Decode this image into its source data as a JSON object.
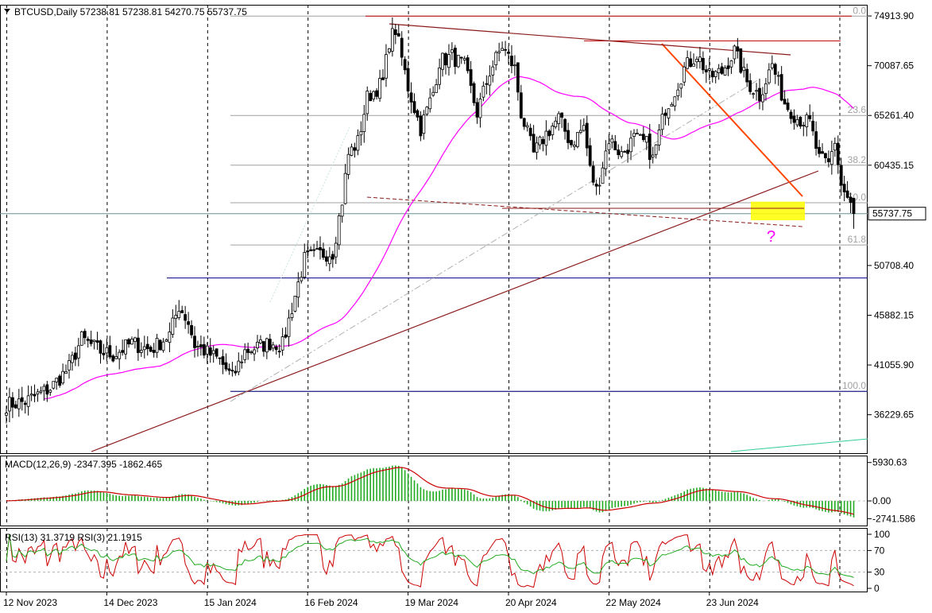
{
  "chart_data": {
    "type": "candlestick",
    "symbol": "BTCUSD",
    "timeframe": "Daily",
    "header": {
      "title": "BTCUSD,Daily  57238.81 57238.81 54270.75 55737.75"
    },
    "price_axis": {
      "ylim": [
        32500,
        76000
      ],
      "ticks": [
        "74913.90",
        "70087.65",
        "65261.40",
        "60435.15",
        "50708.40",
        "45882.15",
        "41055.90",
        "36229.65"
      ],
      "tick_values": [
        74913.9,
        70087.65,
        65261.4,
        60435.15,
        50708.4,
        45882.15,
        41055.9,
        36229.65
      ],
      "current_price_label": "55737.75",
      "current_price": 55737.75
    },
    "time_axis": {
      "labels": [
        "12 Nov 2023",
        "14 Dec 2023",
        "15 Jan 2024",
        "16 Feb 2024",
        "19 Mar 2024",
        "20 Apr 2024",
        "22 May 2024",
        "23 Jun 2024"
      ],
      "label_day_index": [
        0,
        32,
        64,
        96,
        128,
        160,
        192,
        224
      ],
      "total_days": 271
    },
    "fibonacci": {
      "levels": [
        {
          "label": "0.0",
          "price": 74900
        },
        {
          "label": "23.6",
          "price": 65261
        },
        {
          "label": "38.2",
          "price": 60435
        },
        {
          "label": "50.0",
          "price": 56800
        },
        {
          "label": "61.8",
          "price": 52700
        },
        {
          "label": "100.0",
          "price": 38500
        }
      ]
    },
    "horizontal_levels": [
      {
        "price": 49500,
        "color": "#000080"
      },
      {
        "price": 38500,
        "color": "#000080"
      },
      {
        "price": 74900,
        "color": "#c00000"
      },
      {
        "price": 72500,
        "color": "#c00000"
      }
    ],
    "annotation": {
      "text": "?",
      "color": "#ff00ff"
    },
    "highlight_zone": {
      "price_low": 55100,
      "price_high": 56900,
      "color": "#ffff00"
    },
    "ohlc_anchors": [
      {
        "d": 0,
        "c": 37200
      },
      {
        "d": 6,
        "c": 37500
      },
      {
        "d": 14,
        "c": 38800
      },
      {
        "d": 20,
        "c": 40800
      },
      {
        "d": 24,
        "c": 43600
      },
      {
        "d": 30,
        "c": 42400
      },
      {
        "d": 34,
        "c": 42000
      },
      {
        "d": 40,
        "c": 43200
      },
      {
        "d": 46,
        "c": 42500
      },
      {
        "d": 52,
        "c": 44000
      },
      {
        "d": 55,
        "c": 46800
      },
      {
        "d": 58,
        "c": 45200
      },
      {
        "d": 60,
        "c": 43000
      },
      {
        "d": 68,
        "c": 41500
      },
      {
        "d": 72,
        "c": 39800
      },
      {
        "d": 76,
        "c": 42400
      },
      {
        "d": 84,
        "c": 43200
      },
      {
        "d": 88,
        "c": 43000
      },
      {
        "d": 92,
        "c": 47800
      },
      {
        "d": 95,
        "c": 51300
      },
      {
        "d": 100,
        "c": 51800
      },
      {
        "d": 104,
        "c": 52000
      },
      {
        "d": 107,
        "c": 57000
      },
      {
        "d": 109,
        "c": 61500
      },
      {
        "d": 112,
        "c": 62700
      },
      {
        "d": 115,
        "c": 67000
      },
      {
        "d": 120,
        "c": 68500
      },
      {
        "d": 122,
        "c": 72500
      },
      {
        "d": 124,
        "c": 73600
      },
      {
        "d": 128,
        "c": 68000
      },
      {
        "d": 132,
        "c": 64000
      },
      {
        "d": 136,
        "c": 67500
      },
      {
        "d": 138,
        "c": 70500
      },
      {
        "d": 142,
        "c": 71000
      },
      {
        "d": 146,
        "c": 70000
      },
      {
        "d": 150,
        "c": 65500
      },
      {
        "d": 154,
        "c": 69500
      },
      {
        "d": 158,
        "c": 72000
      },
      {
        "d": 162,
        "c": 69800
      },
      {
        "d": 164,
        "c": 65500
      },
      {
        "d": 168,
        "c": 61500
      },
      {
        "d": 172,
        "c": 63500
      },
      {
        "d": 176,
        "c": 65000
      },
      {
        "d": 180,
        "c": 62500
      },
      {
        "d": 184,
        "c": 64200
      },
      {
        "d": 186,
        "c": 60000
      },
      {
        "d": 188,
        "c": 58000
      },
      {
        "d": 192,
        "c": 63000
      },
      {
        "d": 196,
        "c": 61500
      },
      {
        "d": 200,
        "c": 63000
      },
      {
        "d": 204,
        "c": 62500
      },
      {
        "d": 206,
        "c": 61000
      },
      {
        "d": 210,
        "c": 66000
      },
      {
        "d": 212,
        "c": 67000
      },
      {
        "d": 216,
        "c": 69800
      },
      {
        "d": 220,
        "c": 71200
      },
      {
        "d": 224,
        "c": 69000
      },
      {
        "d": 228,
        "c": 69500
      },
      {
        "d": 232,
        "c": 71500
      },
      {
        "d": 236,
        "c": 68500
      },
      {
        "d": 240,
        "c": 67200
      },
      {
        "d": 244,
        "c": 70200
      },
      {
        "d": 248,
        "c": 66500
      },
      {
        "d": 252,
        "c": 65000
      },
      {
        "d": 256,
        "c": 64500
      },
      {
        "d": 259,
        "c": 61000
      },
      {
        "d": 262,
        "c": 60500
      },
      {
        "d": 264,
        "c": 62800
      },
      {
        "d": 266,
        "c": 58500
      },
      {
        "d": 268,
        "c": 57200
      },
      {
        "d": 270,
        "c": 55737.75
      }
    ],
    "moving_average": {
      "color": "#ff00ff"
    },
    "macd": {
      "label": "MACD(12,26,9) -2347.395 -1862.465",
      "ticks": [
        "5930.63",
        "0.00",
        "-2741.586"
      ],
      "tick_values": [
        5930.63,
        0.0,
        -2741.586
      ],
      "ylim": [
        -3800,
        7000
      ],
      "histogram_color": "#22aa22",
      "signal_color": "#cc0000"
    },
    "rsi": {
      "label": "RSI(13) 31.3719  RSI(3) 21.1915",
      "ticks": [
        "100",
        "70",
        "30",
        "0"
      ],
      "tick_values": [
        100,
        70,
        30,
        0
      ],
      "ylim": [
        0,
        100
      ],
      "rsi13_color": "#22aa22",
      "rsi3_color": "#cc0000"
    }
  }
}
